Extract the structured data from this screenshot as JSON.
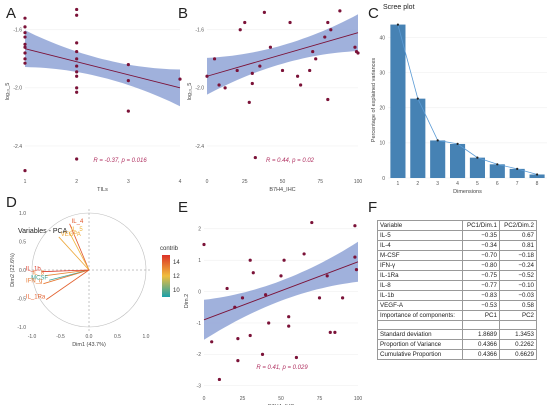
{
  "panel_labels": {
    "a": "A",
    "b": "B",
    "c": "C",
    "d": "D",
    "e": "E",
    "f": "F"
  },
  "colors": {
    "point": "#7b1238",
    "band": "#8fa3d6",
    "line": "#7b1238",
    "bar": "#4682b4",
    "stat": "#b03060"
  },
  "chart_data": [
    {
      "id": "A",
      "type": "scatter",
      "title": "",
      "xlabel": "TILs",
      "ylabel": "log₁₀_5",
      "xlim": [
        1,
        4
      ],
      "ylim": [
        -2.6,
        -1.45
      ],
      "x_ticks": [
        "1",
        "2",
        "3",
        "4"
      ],
      "y_ticks": [
        "-1.6",
        "-2.0",
        "-2.4"
      ],
      "annotation": "R = -0.37, p = 0.016",
      "points": [
        [
          1,
          -1.52
        ],
        [
          1,
          -1.58
        ],
        [
          1,
          -1.62
        ],
        [
          1,
          -1.65
        ],
        [
          1,
          -1.7
        ],
        [
          1,
          -1.72
        ],
        [
          1,
          -1.76
        ],
        [
          1,
          -1.8
        ],
        [
          1,
          -1.83
        ],
        [
          1,
          -2.57
        ],
        [
          2,
          -1.46
        ],
        [
          2,
          -1.5
        ],
        [
          2,
          -1.69
        ],
        [
          2,
          -1.75
        ],
        [
          2,
          -1.8
        ],
        [
          2,
          -1.85
        ],
        [
          2,
          -1.89
        ],
        [
          2,
          -1.92
        ],
        [
          2,
          -2.0
        ],
        [
          2,
          -2.03
        ],
        [
          2,
          -2.49
        ],
        [
          3,
          -1.84
        ],
        [
          3,
          -1.95
        ],
        [
          3,
          -2.16
        ],
        [
          4,
          -1.94
        ]
      ],
      "fit": {
        "x0": 1,
        "y0": -1.73,
        "x1": 4,
        "y1": -2.0
      }
    },
    {
      "id": "B",
      "type": "scatter",
      "title": "",
      "xlabel": "B7H4_IHC",
      "ylabel": "log₁₀_5",
      "xlim": [
        0,
        100
      ],
      "ylim": [
        -2.6,
        -1.45
      ],
      "x_ticks": [
        "0",
        "25",
        "50",
        "75",
        "100"
      ],
      "y_ticks": [
        "-1.6",
        "-2.0",
        "-2.4"
      ],
      "annotation": "R = 0.44, p = 0.02",
      "points": [
        [
          0,
          -1.92
        ],
        [
          5,
          -1.8
        ],
        [
          8,
          -1.98
        ],
        [
          12,
          -2.0
        ],
        [
          20,
          -1.88
        ],
        [
          22,
          -1.6
        ],
        [
          25,
          -1.55
        ],
        [
          28,
          -2.1
        ],
        [
          30,
          -1.97
        ],
        [
          30,
          -1.9
        ],
        [
          32,
          -2.48
        ],
        [
          35,
          -1.85
        ],
        [
          38,
          -1.48
        ],
        [
          42,
          -1.72
        ],
        [
          50,
          -1.88
        ],
        [
          55,
          -1.55
        ],
        [
          60,
          -1.92
        ],
        [
          62,
          -1.98
        ],
        [
          68,
          -1.88
        ],
        [
          70,
          -1.75
        ],
        [
          72,
          -1.8
        ],
        [
          78,
          -1.65
        ],
        [
          80,
          -1.55
        ],
        [
          80,
          -2.08
        ],
        [
          82,
          -1.6
        ],
        [
          88,
          -1.47
        ],
        [
          98,
          -1.72
        ],
        [
          99,
          -1.75
        ],
        [
          100,
          -1.76
        ]
      ],
      "fit": {
        "x0": 0,
        "y0": -1.92,
        "x1": 100,
        "y1": -1.62
      }
    },
    {
      "id": "C",
      "type": "bar",
      "title": "Scree plot",
      "xlabel": "Dimensions",
      "ylabel": "Percentage of explained variances",
      "categories": [
        "1",
        "2",
        "3",
        "4",
        "5",
        "6",
        "7",
        "8"
      ],
      "values": [
        43.7,
        22.6,
        10.7,
        9.7,
        5.8,
        3.9,
        2.6,
        1.0
      ],
      "ylim": [
        0,
        45
      ],
      "y_ticks": [
        "0",
        "10",
        "20",
        "30",
        "40"
      ]
    },
    {
      "id": "D",
      "type": "scatter",
      "title": "Variables - PCA",
      "xlabel": "Dim1 (43.7%)",
      "ylabel": "Dim2 (22.6%)",
      "xlim": [
        -1,
        1
      ],
      "ylim": [
        -1,
        1
      ],
      "x_ticks": [
        "-1.0",
        "-0.5",
        "0.0",
        "0.5",
        "1.0"
      ],
      "y_ticks": [
        "1.0",
        "0.5",
        "0.0",
        "-0.5",
        "-1.0"
      ],
      "legend_title": "contrib",
      "legend_ticks": [
        "14",
        "12",
        "10"
      ],
      "vectors": [
        {
          "label": "IL_4",
          "x": -0.34,
          "y": 0.81,
          "contrib": 14.2
        },
        {
          "label": "IL_5",
          "x": -0.35,
          "y": 0.67,
          "contrib": 12.2
        },
        {
          "label": "VEGFA",
          "x": -0.53,
          "y": 0.58,
          "contrib": 12.5
        },
        {
          "label": "IL_8",
          "x": -0.77,
          "y": -0.1,
          "contrib": 13.2
        },
        {
          "label": "MCSF",
          "x": -0.7,
          "y": -0.18,
          "contrib": 9.5
        },
        {
          "label": "IFN_g",
          "x": -0.8,
          "y": -0.24,
          "contrib": 13.5
        },
        {
          "label": "IL_1b",
          "x": -0.83,
          "y": -0.03,
          "contrib": 14.8
        },
        {
          "label": "IL_1Ra",
          "x": -0.75,
          "y": -0.52,
          "contrib": 14.0
        }
      ]
    },
    {
      "id": "E",
      "type": "scatter",
      "title": "",
      "xlabel": "B7H4_IHC",
      "ylabel": "Dim.2",
      "xlim": [
        0,
        100
      ],
      "ylim": [
        -3.2,
        2.6
      ],
      "x_ticks": [
        "0",
        "25",
        "50",
        "75",
        "100"
      ],
      "y_ticks": [
        "2",
        "1",
        "0",
        "-1",
        "-2",
        "-3"
      ],
      "annotation": "R = 0.41, p = 0.029",
      "points": [
        [
          0,
          1.5
        ],
        [
          5,
          -1.6
        ],
        [
          10,
          -2.8
        ],
        [
          15,
          0.1
        ],
        [
          20,
          -0.5
        ],
        [
          22,
          -1.5
        ],
        [
          22,
          -2.2
        ],
        [
          25,
          -0.2
        ],
        [
          30,
          1.0
        ],
        [
          30,
          -1.4
        ],
        [
          32,
          0.6
        ],
        [
          38,
          -2.0
        ],
        [
          40,
          -0.1
        ],
        [
          42,
          -1.0
        ],
        [
          50,
          0.5
        ],
        [
          52,
          1.0
        ],
        [
          55,
          -0.8
        ],
        [
          55,
          -1.1
        ],
        [
          60,
          -2.1
        ],
        [
          65,
          1.2
        ],
        [
          70,
          2.2
        ],
        [
          75,
          -0.2
        ],
        [
          80,
          0.5
        ],
        [
          82,
          -1.3
        ],
        [
          85,
          -1.3
        ],
        [
          90,
          -0.2
        ],
        [
          98,
          2.1
        ],
        [
          98,
          1.1
        ],
        [
          99,
          0.7
        ]
      ],
      "fit": {
        "x0": 0,
        "y0": -0.9,
        "x1": 100,
        "y1": 0.95
      }
    }
  ],
  "table_f": {
    "header": [
      "Variable",
      "PC1/Dim.1",
      "PC2/Dim.2"
    ],
    "rows": [
      [
        "IL-5",
        "−0.35",
        "0.67"
      ],
      [
        "IL-4",
        "−0.34",
        "0.81"
      ],
      [
        "M-CSF",
        "−0.70",
        "−0.18"
      ],
      [
        "IFN-γ",
        "−0.80",
        "−0.24"
      ],
      [
        "IL-1Ra",
        "−0.75",
        "−0.52"
      ],
      [
        "IL-8",
        "−0.77",
        "−0.10"
      ],
      [
        "IL-1b",
        "−0.83",
        "−0.03"
      ],
      [
        "VEGF-A",
        "−0.53",
        "0.58"
      ]
    ],
    "importance_header": [
      "Importance of components:",
      "PC1",
      "PC2"
    ],
    "importance_rows": [
      [
        "Standard deviation",
        "1.8689",
        "1.3453"
      ],
      [
        "Proportion of Variance",
        "0.4366",
        "0.2262"
      ],
      [
        "Cumulative Proportion",
        "0.4366",
        "0.6629"
      ]
    ]
  }
}
